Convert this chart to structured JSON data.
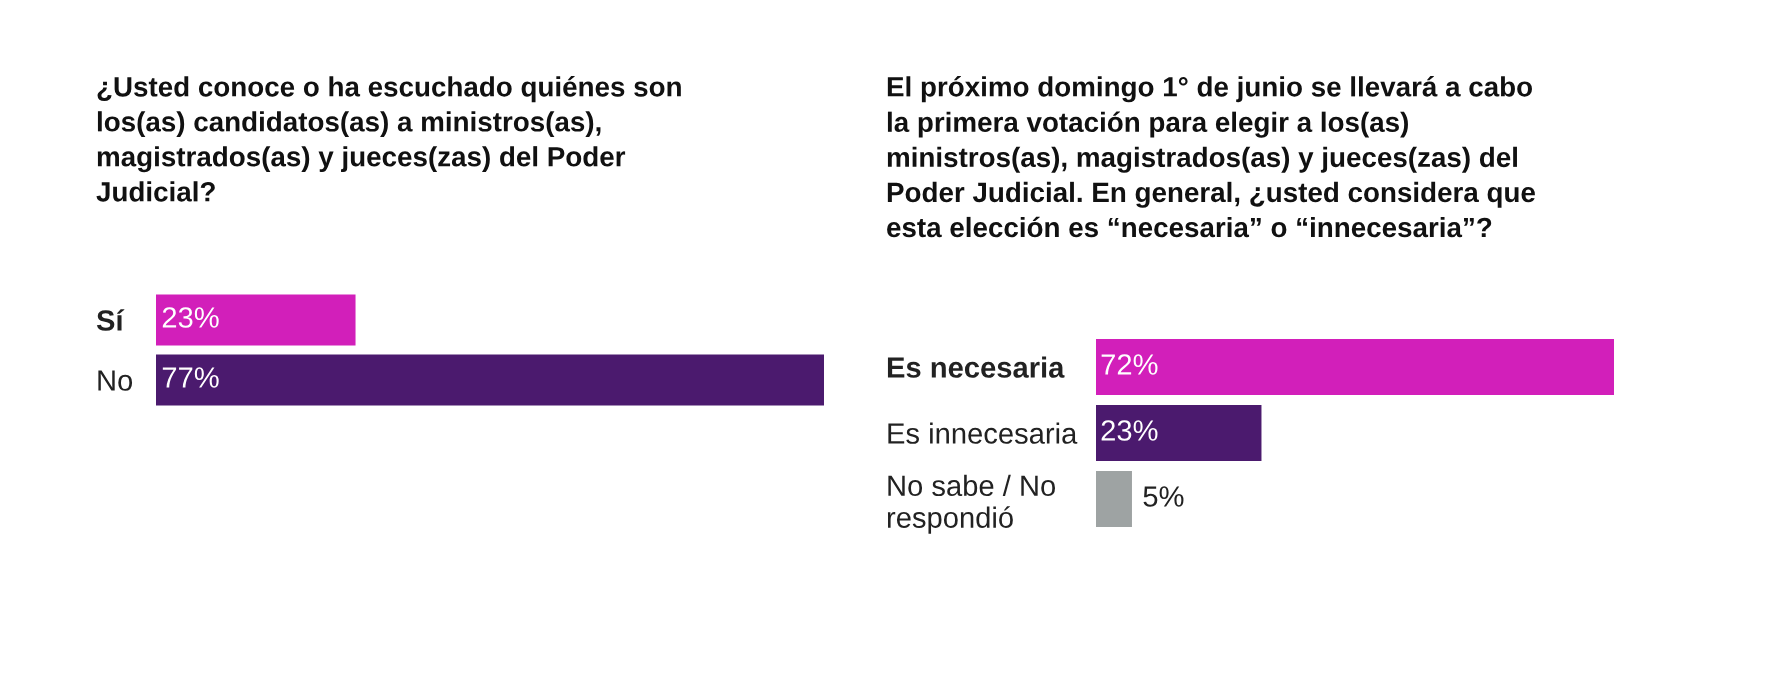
{
  "chart_data": [
    {
      "type": "bar",
      "orientation": "horizontal",
      "title": "¿Usted conoce o ha escuchado quiénes son\nlos(as) candidatos(as) a ministros(as),\nmagistrados(as) y jueces(zas) del Poder\nJudicial?",
      "categories": [
        "Sí",
        "No"
      ],
      "values": [
        23,
        77
      ],
      "colors": [
        "#d21fba",
        "#4b1a6e"
      ],
      "value_labels": [
        "23%",
        "77%"
      ]
    },
    {
      "type": "bar",
      "orientation": "horizontal",
      "title": "El próximo domingo 1° de junio se llevará a cabo\nla primera votación para elegir a los(as)\nministros(as), magistrados(as) y jueces(zas) del\nPoder Judicial. En general, ¿usted considera que\nesta elección es “necesaria” o “innecesaria”?",
      "categories": [
        "Es necesaria",
        "Es innecesaria",
        "No sabe / No\nrespondió"
      ],
      "values": [
        72,
        23,
        5
      ],
      "colors": [
        "#d21fba",
        "#4b1a6e",
        "#9ea3a3"
      ],
      "value_labels": [
        "72%",
        "23%",
        "5%"
      ]
    }
  ]
}
